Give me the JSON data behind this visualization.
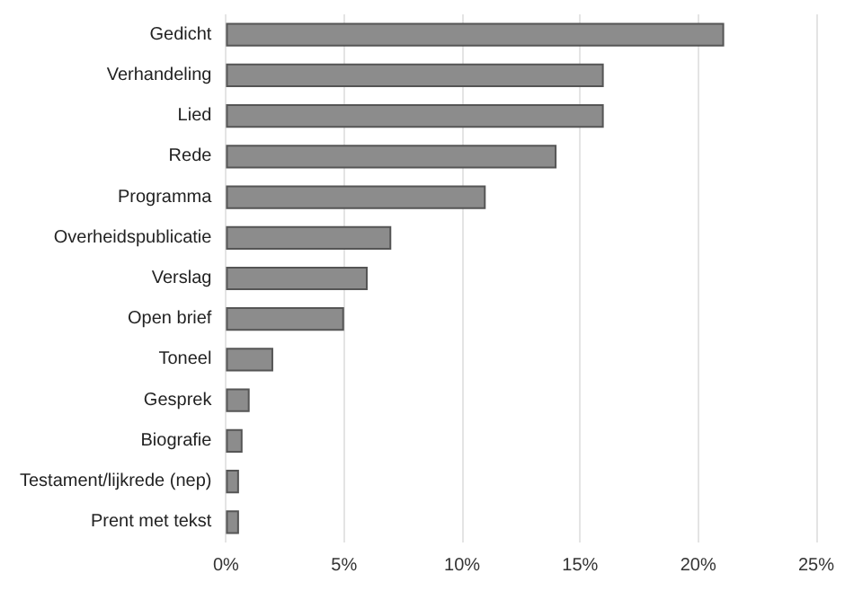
{
  "chart_data": {
    "type": "bar",
    "orientation": "horizontal",
    "categories": [
      "Gedicht",
      "Verhandeling",
      "Lied",
      "Rede",
      "Programma",
      "Overheidspublicatie",
      "Verslag",
      "Open brief",
      "Toneel",
      "Gesprek",
      "Biografie",
      "Testament/lijkrede (nep)",
      "Prent met tekst"
    ],
    "values": [
      21.1,
      16,
      16,
      14,
      11,
      7,
      6,
      5,
      2,
      1,
      0.7,
      0.55,
      0.55
    ],
    "color": "#8c8c8c",
    "xlim": [
      0,
      25
    ],
    "xticks": [
      {
        "value": 0,
        "label": "0%"
      },
      {
        "value": 5,
        "label": "5%"
      },
      {
        "value": 10,
        "label": "10%"
      },
      {
        "value": 15,
        "label": "15%"
      },
      {
        "value": 20,
        "label": "20%"
      },
      {
        "value": 25,
        "label": "25%"
      }
    ],
    "grid": "x"
  }
}
